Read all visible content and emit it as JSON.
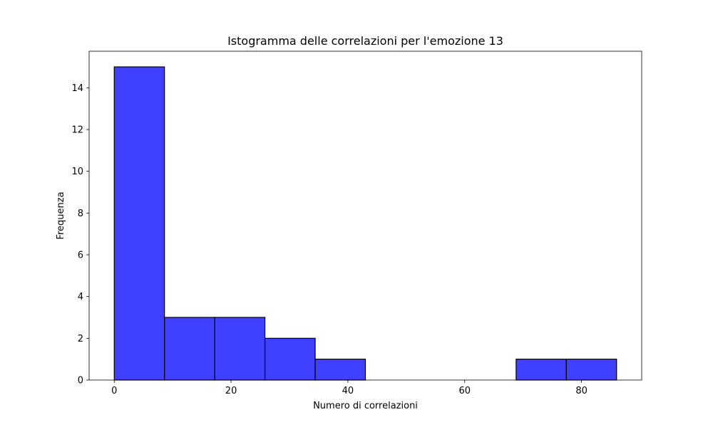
{
  "chart_data": {
    "type": "bar",
    "subtype": "histogram",
    "title": "Istogramma delle correlazioni per l'emozione 13",
    "xlabel": "Numero di correlazioni",
    "ylabel": "Frequenza",
    "xlim": [
      -4.3,
      90.3
    ],
    "ylim": [
      0,
      15.75
    ],
    "xticks": [
      0,
      20,
      40,
      60,
      80
    ],
    "yticks": [
      0,
      2,
      4,
      6,
      8,
      10,
      12,
      14
    ],
    "bin_edges": [
      0,
      8.6,
      17.2,
      25.8,
      34.4,
      43.0,
      51.6,
      60.2,
      68.8,
      77.4,
      86.0
    ],
    "counts": [
      15,
      3,
      3,
      2,
      1,
      0,
      0,
      0,
      1,
      1
    ],
    "bar_color": "#4040ff",
    "edge_color": "#000000",
    "grid": false,
    "legend": false
  }
}
